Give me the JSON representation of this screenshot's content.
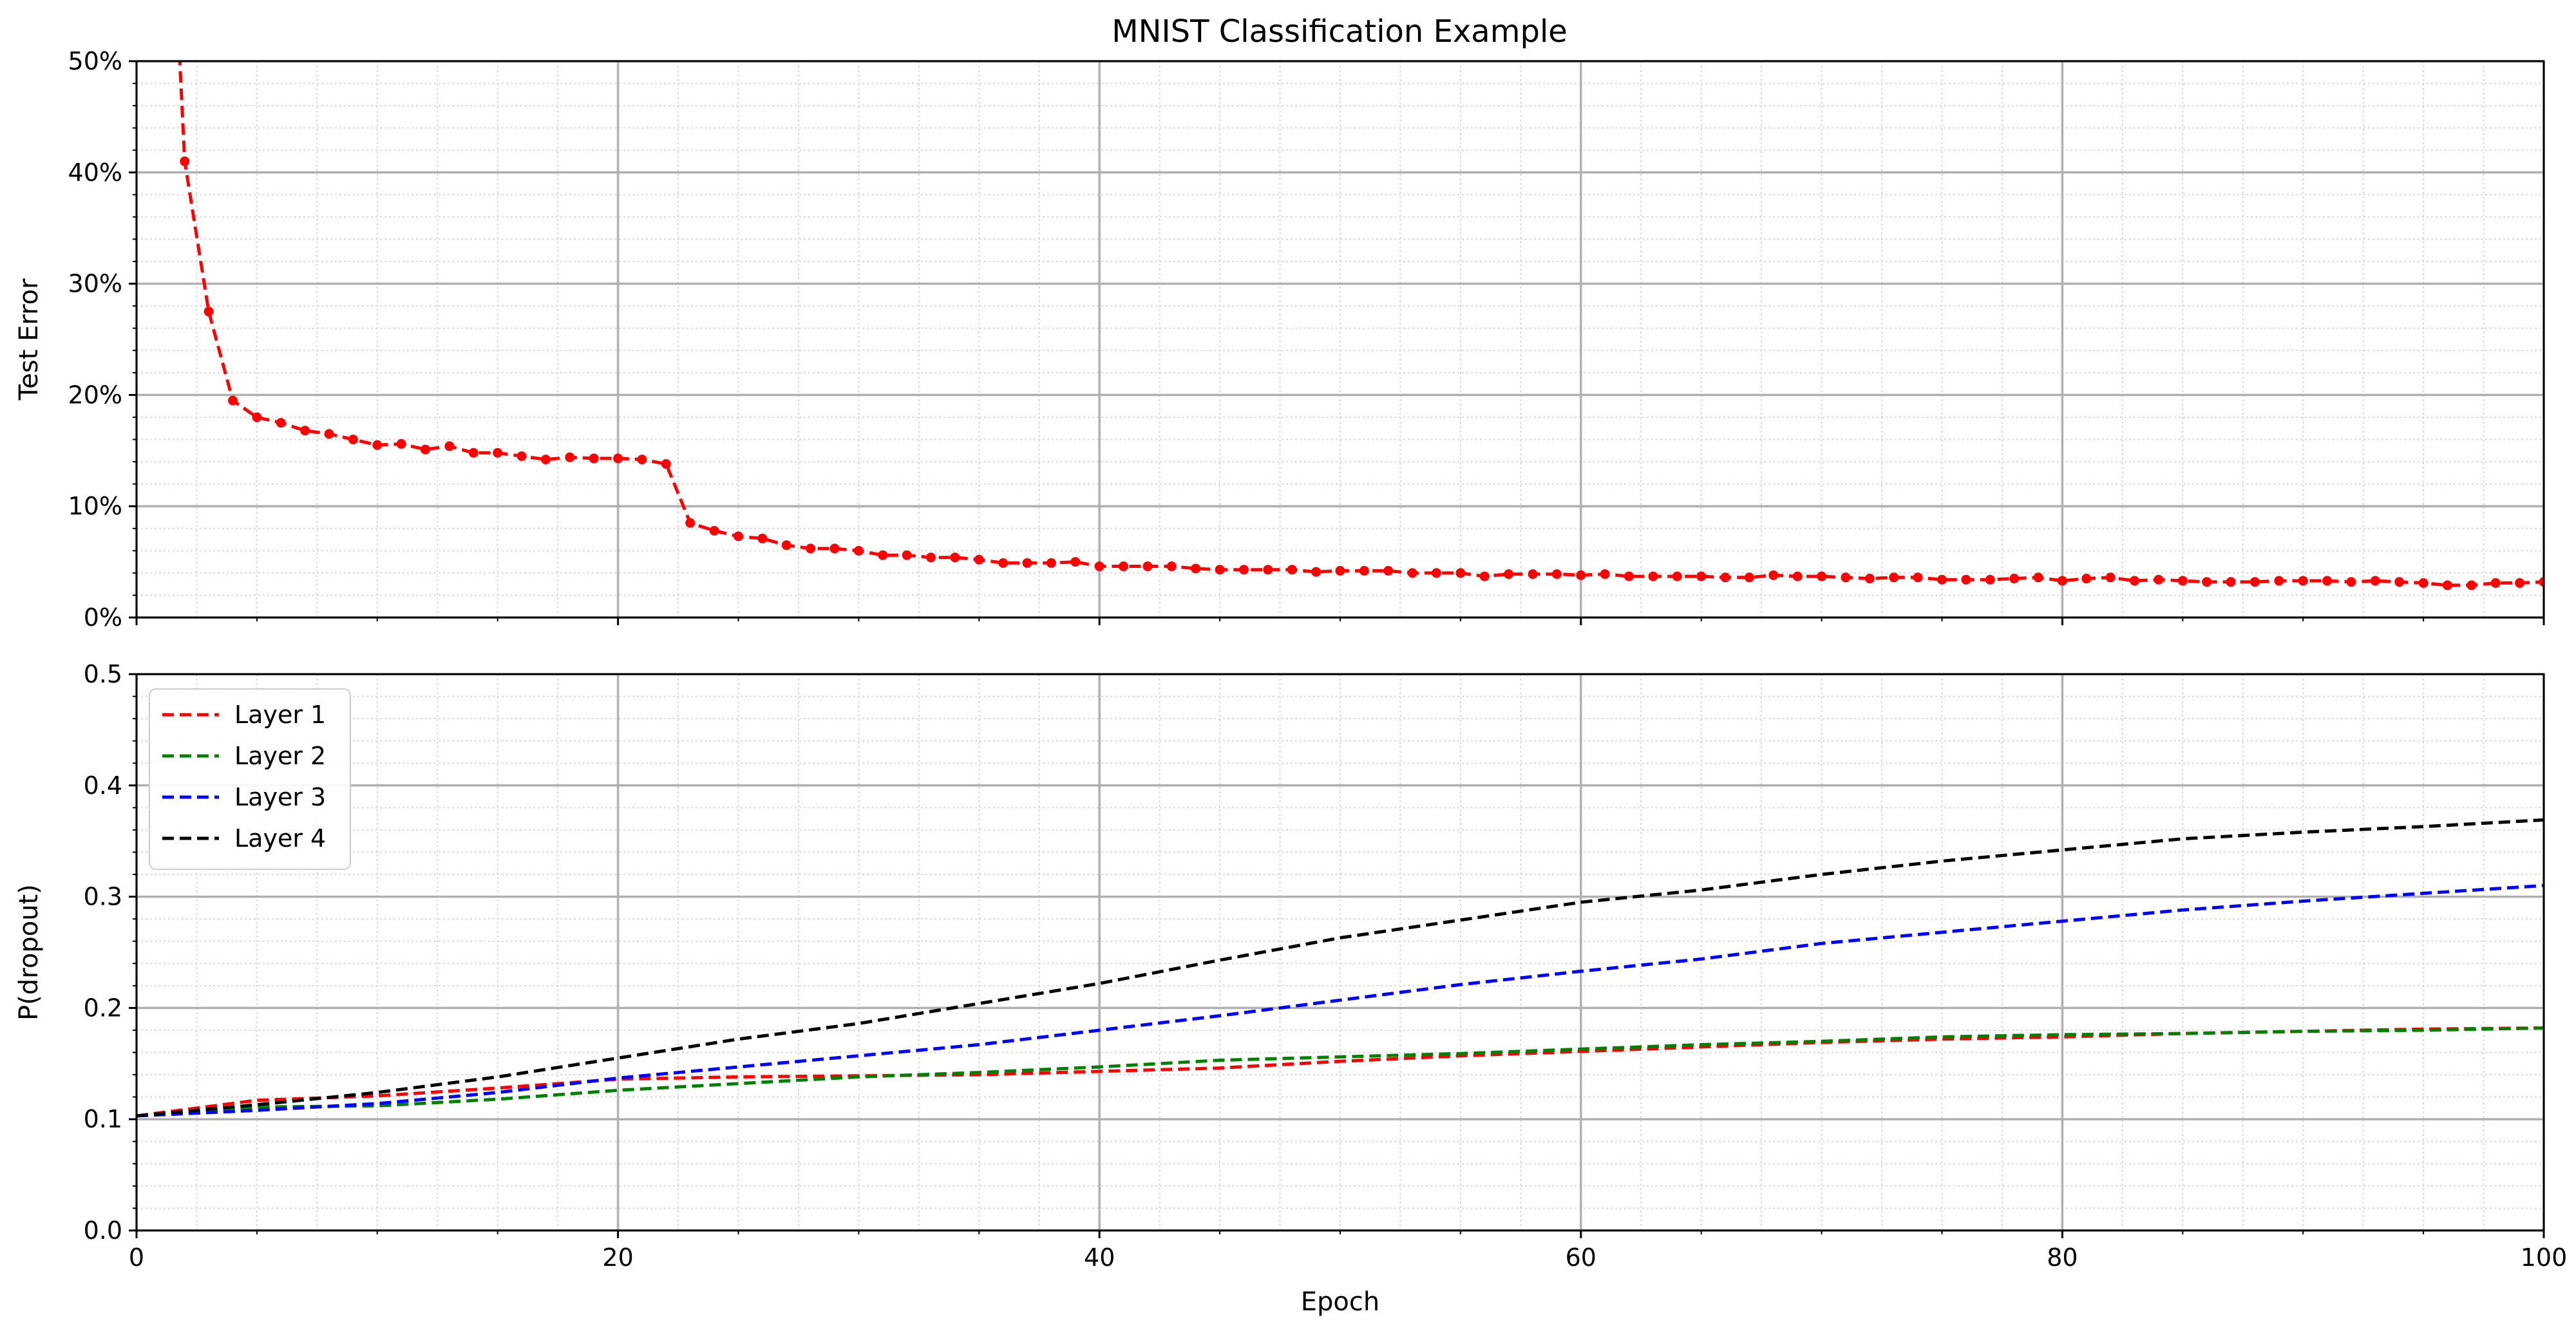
{
  "chart_data": [
    {
      "type": "line",
      "title": "MNIST Classification Example",
      "xlabel": "",
      "ylabel": "Test Error",
      "xlim": [
        0,
        100
      ],
      "ylim": [
        0,
        50
      ],
      "x_ticks": [
        "0",
        "20",
        "40",
        "60",
        "80",
        "100"
      ],
      "y_ticks": [
        "0%",
        "10%",
        "20%",
        "30%",
        "40%",
        "50%"
      ],
      "grid": true,
      "series": [
        {
          "color": "#ff0000",
          "style": "dashed-with-dots",
          "x": [
            1,
            2,
            3,
            4,
            5,
            6,
            7,
            8,
            9,
            10,
            11,
            12,
            13,
            14,
            15,
            16,
            17,
            18,
            19,
            20,
            21,
            22,
            23,
            24,
            25,
            26,
            27,
            28,
            29,
            30,
            31,
            32,
            33,
            34,
            35,
            36,
            37,
            38,
            39,
            40,
            41,
            42,
            43,
            44,
            45,
            46,
            47,
            48,
            49,
            50,
            51,
            52,
            53,
            54,
            55,
            56,
            57,
            58,
            59,
            60,
            61,
            62,
            63,
            64,
            65,
            66,
            67,
            68,
            69,
            70,
            71,
            72,
            73,
            74,
            75,
            76,
            77,
            78,
            79,
            80,
            81,
            82,
            83,
            84,
            85,
            86,
            87,
            88,
            89,
            90,
            91,
            92,
            93,
            94,
            95,
            96,
            97,
            98,
            99,
            100
          ],
          "y": [
            85,
            41,
            27.5,
            19.5,
            18,
            17.5,
            16.8,
            16.5,
            16,
            15.5,
            15.6,
            15.1,
            15.4,
            14.8,
            14.8,
            14.5,
            14.2,
            14.4,
            14.3,
            14.3,
            14.2,
            13.8,
            8.5,
            7.8,
            7.3,
            7.1,
            6.5,
            6.2,
            6.2,
            6.0,
            5.6,
            5.6,
            5.4,
            5.4,
            5.2,
            4.9,
            4.9,
            4.9,
            5.0,
            4.6,
            4.6,
            4.6,
            4.6,
            4.4,
            4.3,
            4.3,
            4.3,
            4.3,
            4.1,
            4.2,
            4.2,
            4.2,
            4.0,
            4.0,
            4.0,
            3.7,
            3.9,
            3.9,
            3.9,
            3.8,
            3.9,
            3.7,
            3.7,
            3.7,
            3.7,
            3.6,
            3.6,
            3.8,
            3.7,
            3.7,
            3.6,
            3.5,
            3.6,
            3.6,
            3.4,
            3.4,
            3.4,
            3.5,
            3.6,
            3.3,
            3.5,
            3.6,
            3.3,
            3.4,
            3.3,
            3.2,
            3.2,
            3.2,
            3.3,
            3.3,
            3.3,
            3.2,
            3.3,
            3.2,
            3.1,
            2.9,
            2.9,
            3.1,
            3.1,
            3.2
          ]
        }
      ]
    },
    {
      "type": "line",
      "title": "",
      "xlabel": "Epoch",
      "ylabel": "P(dropout)",
      "xlim": [
        0,
        100
      ],
      "ylim": [
        0,
        0.5
      ],
      "x_ticks": [
        "0",
        "20",
        "40",
        "60",
        "80",
        "100"
      ],
      "y_ticks": [
        "0.0",
        "0.1",
        "0.2",
        "0.3",
        "0.4",
        "0.5"
      ],
      "grid": true,
      "legend": "top-left",
      "x": [
        0,
        5,
        10,
        15,
        20,
        25,
        30,
        35,
        40,
        45,
        50,
        55,
        60,
        65,
        70,
        75,
        80,
        85,
        90,
        95,
        100
      ],
      "series": [
        {
          "name": "Layer 1",
          "color": "#ff0000",
          "values": [
            0.103,
            0.117,
            0.121,
            0.128,
            0.136,
            0.138,
            0.139,
            0.14,
            0.143,
            0.146,
            0.152,
            0.157,
            0.161,
            0.165,
            0.169,
            0.172,
            0.174,
            0.177,
            0.179,
            0.181,
            0.182
          ]
        },
        {
          "name": "Layer 2",
          "color": "#008000",
          "values": [
            0.103,
            0.111,
            0.112,
            0.118,
            0.126,
            0.132,
            0.138,
            0.142,
            0.147,
            0.153,
            0.156,
            0.159,
            0.163,
            0.167,
            0.17,
            0.174,
            0.176,
            0.177,
            0.179,
            0.18,
            0.182
          ]
        },
        {
          "name": "Layer 3",
          "color": "#0000ff",
          "values": [
            0.103,
            0.108,
            0.114,
            0.124,
            0.137,
            0.147,
            0.157,
            0.167,
            0.18,
            0.193,
            0.207,
            0.221,
            0.233,
            0.244,
            0.258,
            0.268,
            0.278,
            0.288,
            0.296,
            0.303,
            0.31
          ]
        },
        {
          "name": "Layer 4",
          "color": "#000000",
          "values": [
            0.103,
            0.113,
            0.124,
            0.138,
            0.155,
            0.172,
            0.186,
            0.204,
            0.222,
            0.243,
            0.263,
            0.279,
            0.295,
            0.306,
            0.32,
            0.332,
            0.342,
            0.352,
            0.358,
            0.363,
            0.369
          ]
        }
      ]
    }
  ]
}
